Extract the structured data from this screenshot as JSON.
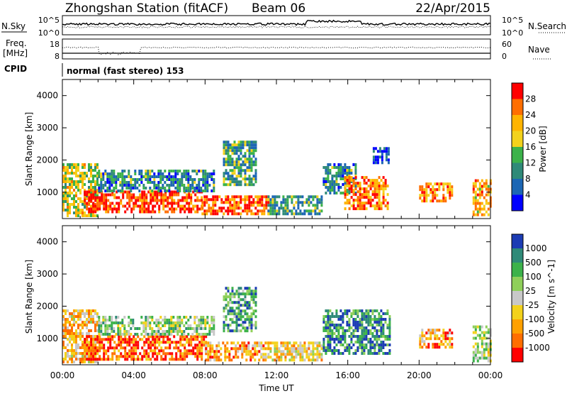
{
  "header": {
    "station": "Zhongshan Station (fitACF)",
    "beam": "Beam 06",
    "date": "22/Apr/2015"
  },
  "top_panels": {
    "nsky_label": "N.Sky",
    "nsearch_label": "N.Search",
    "freq_label_1": "Freq.",
    "freq_label_2": "[MHz]",
    "nave_label": "Nave",
    "cpid_label": "CPID",
    "cpid_text": "normal (fast stereo) 153",
    "noise_ticks": [
      "10^5",
      "10^0"
    ],
    "freq_ticks": [
      "18",
      "8"
    ],
    "nave_ticks": [
      "60",
      "0"
    ]
  },
  "chart_data": [
    {
      "type": "heatmap",
      "title": "Power",
      "ylabel": "Slant Range [km]",
      "xlabel": "",
      "x_ticks": [
        "00:00",
        "04:00",
        "08:00",
        "12:00",
        "16:00",
        "20:00",
        "00:00"
      ],
      "y_ticks": [
        "1000",
        "2000",
        "3000",
        "4000"
      ],
      "ylim": [
        180,
        4500
      ],
      "xlim_hours": [
        0,
        24
      ],
      "colorbar": {
        "label": "Power [dB]",
        "ticks": [
          "28",
          "24",
          "20",
          "16",
          "12",
          "8",
          "4"
        ],
        "colors": [
          "#ff0000",
          "#ff6e00",
          "#ffb400",
          "#f3d21c",
          "#3cb24a",
          "#2f8a78",
          "#1c66b4",
          "#0000ff"
        ]
      },
      "regions": [
        {
          "t0": 0.0,
          "t1": 2.0,
          "r0": 300,
          "r1": 1900,
          "level": 0.55
        },
        {
          "t0": 1.2,
          "t1": 7.8,
          "r0": 350,
          "r1": 1050,
          "level": 0.9
        },
        {
          "t0": 2.0,
          "t1": 8.5,
          "r0": 1050,
          "r1": 1700,
          "level": 0.3
        },
        {
          "t0": 7.8,
          "t1": 11.5,
          "r0": 350,
          "r1": 900,
          "level": 0.85
        },
        {
          "t0": 9.0,
          "t1": 10.8,
          "r0": 1200,
          "r1": 2600,
          "level": 0.35
        },
        {
          "t0": 11.5,
          "t1": 14.5,
          "r0": 350,
          "r1": 900,
          "level": 0.35
        },
        {
          "t0": 14.6,
          "t1": 16.5,
          "r0": 1000,
          "r1": 1900,
          "level": 0.3
        },
        {
          "t0": 15.8,
          "t1": 18.2,
          "r0": 500,
          "r1": 1500,
          "level": 0.8
        },
        {
          "t0": 17.4,
          "t1": 18.3,
          "r0": 1900,
          "r1": 2400,
          "level": 0.1
        },
        {
          "t0": 20.0,
          "t1": 21.8,
          "r0": 700,
          "r1": 1300,
          "level": 0.75
        },
        {
          "t0": 23.0,
          "t1": 24.0,
          "r0": 300,
          "r1": 1400,
          "level": 0.7
        }
      ]
    },
    {
      "type": "heatmap",
      "title": "Velocity",
      "ylabel": "Slant Range [km]",
      "xlabel": "Time UT",
      "x_ticks": [
        "00:00",
        "04:00",
        "08:00",
        "12:00",
        "16:00",
        "20:00",
        "00:00"
      ],
      "y_ticks": [
        "1000",
        "2000",
        "3000",
        "4000"
      ],
      "ylim": [
        180,
        4500
      ],
      "xlim_hours": [
        0,
        24
      ],
      "colorbar": {
        "label": "Velocity [m s^-1]",
        "ticks": [
          "1000",
          "500",
          "100",
          "25",
          "-25",
          "-100",
          "-500",
          "-1000"
        ],
        "colors": [
          "#1c3cb4",
          "#2f8a78",
          "#3cb24a",
          "#8fcf5a",
          "#c8c8c8",
          "#f3d21c",
          "#ffa000",
          "#ff6e00",
          "#ff0000"
        ]
      },
      "regions": [
        {
          "t0": 0.0,
          "t1": 2.0,
          "r0": 300,
          "r1": 1900,
          "level": 0.35
        },
        {
          "t0": 1.2,
          "t1": 8.0,
          "r0": 350,
          "r1": 1100,
          "level": 0.15
        },
        {
          "t0": 2.0,
          "t1": 8.5,
          "r0": 1100,
          "r1": 1700,
          "level": 0.6
        },
        {
          "t0": 8.0,
          "t1": 11.5,
          "r0": 350,
          "r1": 900,
          "level": 0.3
        },
        {
          "t0": 9.0,
          "t1": 10.8,
          "r0": 1200,
          "r1": 2600,
          "level": 0.75
        },
        {
          "t0": 11.5,
          "t1": 14.5,
          "r0": 350,
          "r1": 900,
          "level": 0.4
        },
        {
          "t0": 14.6,
          "t1": 18.3,
          "r0": 500,
          "r1": 1900,
          "level": 0.8
        },
        {
          "t0": 20.0,
          "t1": 21.8,
          "r0": 700,
          "r1": 1300,
          "level": 0.3
        },
        {
          "t0": 23.0,
          "t1": 24.0,
          "r0": 300,
          "r1": 1400,
          "level": 0.55
        }
      ]
    }
  ]
}
